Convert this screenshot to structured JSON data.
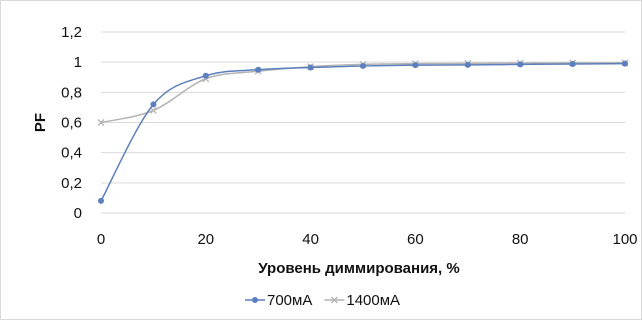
{
  "chart_data": {
    "type": "line",
    "xlabel": "Уровень диммирования, %",
    "ylabel": "PF",
    "xlim": [
      0,
      100
    ],
    "ylim": [
      0,
      1.2
    ],
    "x_ticks": [
      "0",
      "20",
      "40",
      "60",
      "80",
      "100"
    ],
    "y_ticks": [
      "0",
      "0,2",
      "0,4",
      "0,6",
      "0,8",
      "1",
      "1,2"
    ],
    "grid": "horizontal",
    "legend_position": "bottom",
    "series": [
      {
        "name": "700мА",
        "color": "#5b7fbf",
        "marker": "circle",
        "x": [
          0,
          10,
          20,
          30,
          40,
          50,
          60,
          70,
          80,
          90,
          100
        ],
        "y": [
          0.08,
          0.72,
          0.91,
          0.95,
          0.965,
          0.975,
          0.98,
          0.982,
          0.985,
          0.988,
          0.99
        ]
      },
      {
        "name": "1400мА",
        "color": "#b3b3b3",
        "marker": "cross",
        "x": [
          0,
          10,
          20,
          30,
          40,
          50,
          60,
          70,
          80,
          90,
          100
        ],
        "y": [
          0.6,
          0.68,
          0.89,
          0.94,
          0.97,
          0.985,
          0.99,
          0.992,
          0.994,
          0.995,
          0.996
        ]
      }
    ]
  }
}
